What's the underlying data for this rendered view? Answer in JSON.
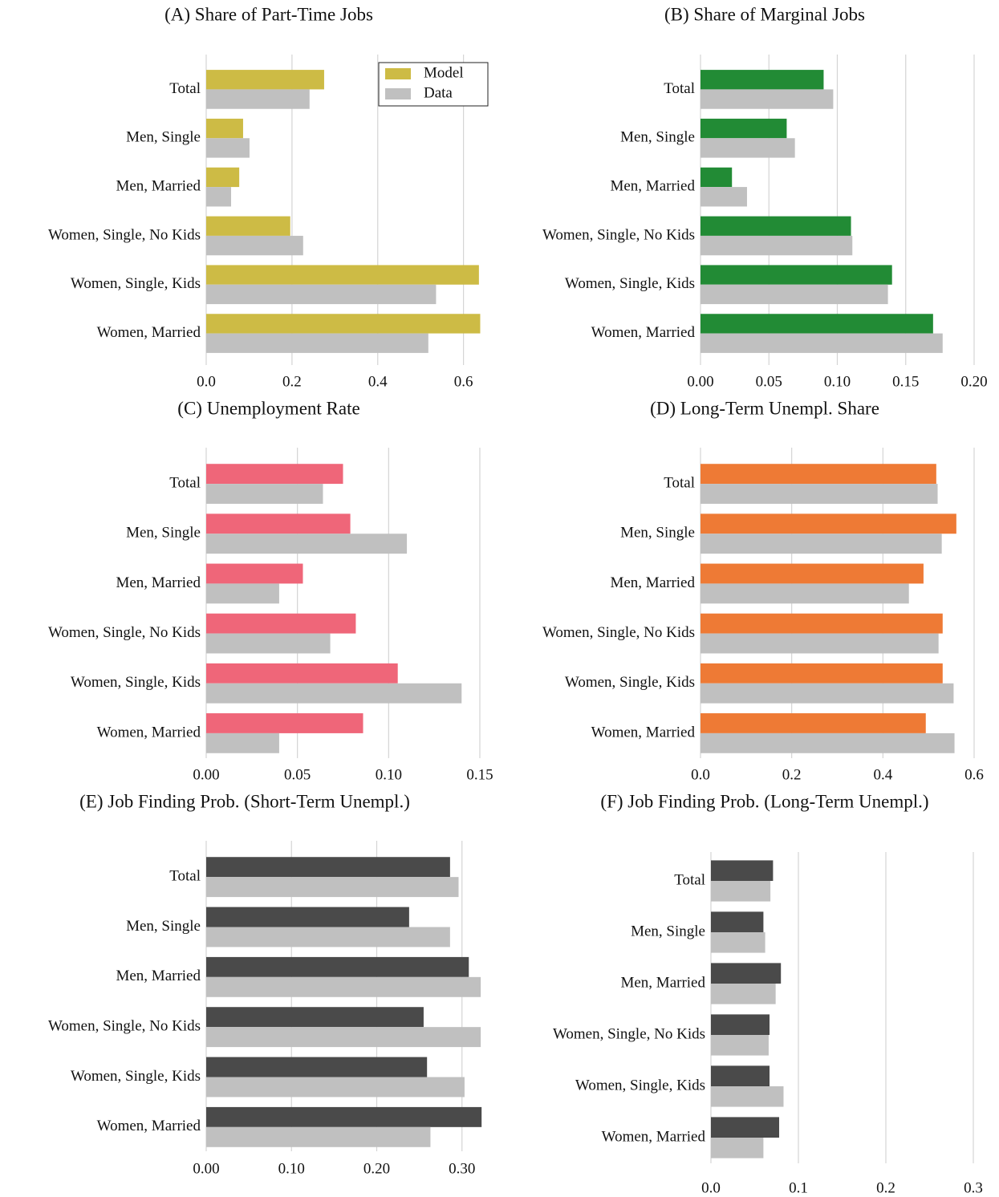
{
  "chart_data": [
    {
      "type": "barh",
      "title": "(A) Share of Part-Time Jobs",
      "categories": [
        "Total",
        "Men, Single",
        "Men, Married",
        "Women, Single, No Kids",
        "Women, Single, Kids",
        "Women, Married"
      ],
      "series": [
        {
          "name": "Model",
          "color": "#cdbb45",
          "values": [
            0.275,
            0.086,
            0.077,
            0.196,
            0.636,
            0.639
          ]
        },
        {
          "name": "Data",
          "color": "#c0c0c0",
          "values": [
            0.241,
            0.101,
            0.058,
            0.226,
            0.536,
            0.518
          ]
        }
      ],
      "xlim": [
        0,
        0.64
      ],
      "xticks": [
        {
          "value": 0,
          "label": "0.0"
        },
        0.2,
        0.4,
        0.6
      ],
      "grid": true,
      "legend": "upper right"
    },
    {
      "type": "barh",
      "title": "(B) Share of Marginal Jobs",
      "categories": [
        "Total",
        "Men, Single",
        "Men, Married",
        "Women, Single, No Kids",
        "Women, Single, Kids",
        "Women, Married"
      ],
      "series": [
        {
          "color": "#228b35",
          "values": [
            0.09,
            0.063,
            0.023,
            0.11,
            0.14,
            0.17
          ]
        },
        {
          "color": "#c0c0c0",
          "values": [
            0.097,
            0.069,
            0.034,
            0.111,
            0.137,
            0.177
          ]
        }
      ],
      "xlim": [
        0,
        0.2
      ],
      "xticks": [
        {
          "value": 0,
          "label": "0.00"
        },
        0.05,
        {
          "value": 0.1,
          "label": "0.10"
        },
        0.15,
        {
          "value": 0.2,
          "label": "0.20"
        }
      ],
      "grid": true
    },
    {
      "type": "barh",
      "title": "(C) Unemployment Rate",
      "categories": [
        "Total",
        "Men, Single",
        "Men, Married",
        "Women, Single, No Kids",
        "Women, Single, Kids",
        "Women, Married"
      ],
      "series": [
        {
          "color": "#ef6679",
          "values": [
            0.075,
            0.079,
            0.053,
            0.082,
            0.105,
            0.086
          ]
        },
        {
          "color": "#c0c0c0",
          "values": [
            0.064,
            0.11,
            0.04,
            0.068,
            0.14,
            0.04
          ]
        }
      ],
      "xlim": [
        0,
        0.15
      ],
      "xticks": [
        {
          "value": 0,
          "label": "0.00"
        },
        0.05,
        {
          "value": 0.1,
          "label": "0.10"
        },
        0.15
      ],
      "grid": true
    },
    {
      "type": "barh",
      "title": "(D) Long-Term Unempl. Share",
      "categories": [
        "Total",
        "Men, Single",
        "Men, Married",
        "Women, Single, No Kids",
        "Women, Single, Kids",
        "Women, Married"
      ],
      "series": [
        {
          "color": "#ee7a35",
          "values": [
            0.517,
            0.561,
            0.489,
            0.531,
            0.531,
            0.494
          ]
        },
        {
          "color": "#c0c0c0",
          "values": [
            0.52,
            0.529,
            0.457,
            0.522,
            0.555,
            0.557
          ]
        }
      ],
      "xlim": [
        0,
        0.6
      ],
      "xticks": [
        {
          "value": 0,
          "label": "0.0"
        },
        0.2,
        0.4,
        0.6
      ],
      "grid": true
    },
    {
      "type": "barh",
      "title": "(E) Job Finding Prob. (Short-Term Unempl.)",
      "categories": [
        "Total",
        "Men, Single",
        "Men, Married",
        "Women, Single, No Kids",
        "Women, Single, Kids",
        "Women, Married"
      ],
      "series": [
        {
          "color": "#4a4a4a",
          "values": [
            0.286,
            0.238,
            0.308,
            0.255,
            0.259,
            0.323
          ]
        },
        {
          "color": "#c0c0c0",
          "values": [
            0.296,
            0.286,
            0.322,
            0.322,
            0.303,
            0.263
          ]
        }
      ],
      "xlim": [
        0,
        0.32
      ],
      "xticks": [
        {
          "value": 0,
          "label": "0.00"
        },
        {
          "value": 0.1,
          "label": "0.10"
        },
        {
          "value": 0.2,
          "label": "0.20"
        },
        {
          "value": 0.3,
          "label": "0.30"
        }
      ],
      "grid": true
    },
    {
      "type": "barh",
      "title": "(F) Job Finding Prob. (Long-Term Unempl.)",
      "categories": [
        "Total",
        "Men, Single",
        "Men, Married",
        "Women, Single, No Kids",
        "Women, Single, Kids",
        "Women, Married"
      ],
      "series": [
        {
          "color": "#4a4a4a",
          "values": [
            0.071,
            0.06,
            0.08,
            0.067,
            0.067,
            0.078
          ]
        },
        {
          "color": "#c0c0c0",
          "values": [
            0.068,
            0.062,
            0.074,
            0.066,
            0.083,
            0.06
          ]
        }
      ],
      "xlim": [
        0,
        0.3
      ],
      "xticks": [
        {
          "value": 0,
          "label": "0.0"
        },
        0.1,
        0.2,
        0.3
      ],
      "grid": true
    }
  ]
}
